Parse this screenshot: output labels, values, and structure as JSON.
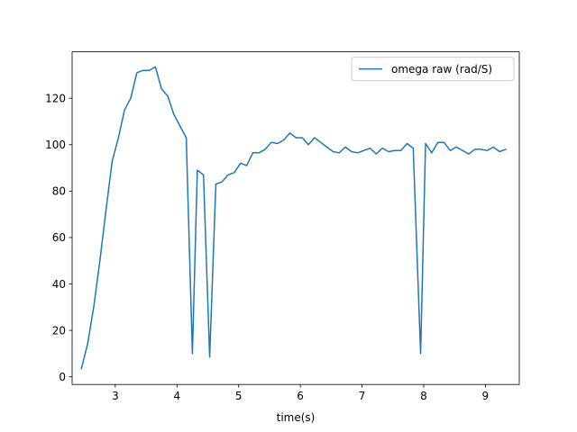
{
  "chart_data": {
    "type": "line",
    "title": "",
    "xlabel": "time(s)",
    "ylabel": "",
    "xlim": [
      2.3,
      9.55
    ],
    "ylim": [
      -3.3,
      140
    ],
    "xticks": [
      3,
      4,
      5,
      6,
      7,
      8,
      9
    ],
    "yticks": [
      0,
      20,
      40,
      60,
      80,
      100,
      120
    ],
    "grid": false,
    "legend_position": "top-right",
    "series": [
      {
        "name": "omega raw (rad/S)",
        "color": "#1f77b4",
        "x": [
          2.45,
          2.55,
          2.65,
          2.75,
          2.85,
          2.95,
          3.05,
          3.15,
          3.25,
          3.35,
          3.45,
          3.55,
          3.65,
          3.75,
          3.85,
          3.95,
          4.05,
          4.15,
          4.25,
          4.33,
          4.43,
          4.53,
          4.63,
          4.73,
          4.83,
          4.93,
          5.03,
          5.13,
          5.23,
          5.33,
          5.43,
          5.53,
          5.63,
          5.73,
          5.83,
          5.93,
          6.03,
          6.13,
          6.23,
          6.33,
          6.43,
          6.53,
          6.63,
          6.73,
          6.83,
          6.93,
          7.03,
          7.13,
          7.23,
          7.33,
          7.43,
          7.53,
          7.63,
          7.73,
          7.83,
          7.95,
          8.03,
          8.13,
          8.23,
          8.33,
          8.43,
          8.53,
          8.63,
          8.73,
          8.83,
          8.93,
          9.03,
          9.13,
          9.23,
          9.33
        ],
        "values": [
          3.5,
          14,
          30,
          50,
          72,
          93,
          103,
          115,
          120,
          131,
          132,
          132,
          133.5,
          124,
          121,
          113,
          108,
          103,
          10,
          89,
          87,
          8.5,
          83,
          84,
          87,
          88,
          92,
          91,
          96.5,
          96.5,
          98,
          101,
          100.5,
          102,
          105,
          103,
          103,
          100,
          103,
          101,
          99,
          97,
          96.5,
          99,
          97,
          96.5,
          97.5,
          98.5,
          96,
          98.5,
          97,
          97.5,
          97.5,
          100.5,
          98.5,
          10,
          100.5,
          96.5,
          101,
          101,
          97.5,
          99,
          97.5,
          96,
          98,
          98,
          97.5,
          99,
          97,
          98
        ]
      }
    ]
  }
}
